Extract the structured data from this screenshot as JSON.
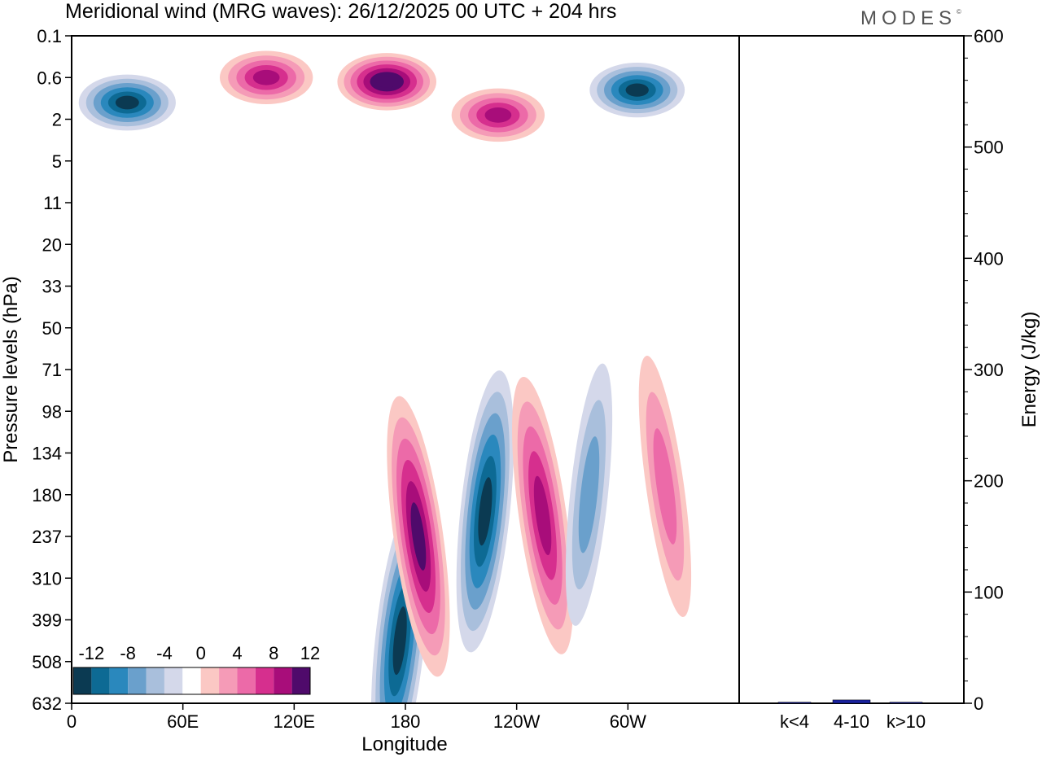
{
  "title": "Meridional wind (MRG waves):  26/12/2025  00 UTC  + 204 hrs",
  "brand": "MODES",
  "brand_mark": "©",
  "chart_data": [
    {
      "type": "heatmap",
      "variable": "Meridional wind (MRG waves)",
      "xlabel": "Longitude",
      "ylabel": "Pressure levels (hPa)",
      "x_ticks": [
        "0",
        "60E",
        "120E",
        "180",
        "120W",
        "60W"
      ],
      "x_tick_degrees": [
        0,
        60,
        120,
        180,
        240,
        300
      ],
      "xlim_degrees": [
        0,
        360
      ],
      "y_ticks": [
        "0.1",
        "0.6",
        "2",
        "5",
        "11",
        "20",
        "33",
        "50",
        "71",
        "98",
        "134",
        "180",
        "237",
        "310",
        "399",
        "508",
        "632"
      ],
      "colorbar": {
        "levels_labeled": [
          "-12",
          "-8",
          "-4",
          "0",
          "4",
          "8",
          "12"
        ],
        "bins": [
          -14,
          -12,
          -10,
          -8,
          -6,
          -4,
          -2,
          2,
          4,
          6,
          8,
          10,
          12,
          14
        ],
        "colors": [
          "#0b3a52",
          "#0d6a94",
          "#2a88bd",
          "#6aa0cc",
          "#a9bfdc",
          "#d4d8ea",
          "#ffffff",
          "#fbc8c4",
          "#f59bb7",
          "#ec6aa8",
          "#d62f8e",
          "#a80d7a",
          "#4f0a6b"
        ]
      },
      "features": [
        {
          "lon": 30,
          "level_index": 1.6,
          "value": -13,
          "description": "negative anomaly upper"
        },
        {
          "lon": 105,
          "level_index": 1.0,
          "value": 11,
          "description": "positive anomaly upper"
        },
        {
          "lon": 170,
          "level_index": 1.1,
          "value": 14,
          "description": "positive anomaly upper"
        },
        {
          "lon": 230,
          "level_index": 1.9,
          "value": 11,
          "description": "positive anomaly upper"
        },
        {
          "lon": 305,
          "level_index": 1.3,
          "value": -12,
          "description": "negative anomaly upper"
        },
        {
          "lon": 177,
          "level_index": 14.5,
          "value": -12,
          "description": "negative tongue lower"
        },
        {
          "lon": 187,
          "level_index": 12.0,
          "value": 12,
          "description": "positive band lower"
        },
        {
          "lon": 223,
          "level_index": 11.4,
          "value": -12,
          "description": "negative band lower"
        },
        {
          "lon": 254,
          "level_index": 11.5,
          "value": 11,
          "description": "positive band lower"
        },
        {
          "lon": 279,
          "level_index": 11.0,
          "value": -6,
          "description": "negative band lower"
        },
        {
          "lon": 320,
          "level_index": 10.8,
          "value": 6,
          "description": "positive anomaly lower"
        }
      ]
    },
    {
      "type": "bar",
      "categories": [
        "k<4",
        "4-10",
        "k>10"
      ],
      "values": [
        1,
        3,
        1
      ],
      "ylabel": "Energy (J/kg)",
      "ylim": [
        0,
        600
      ],
      "y_ticks": [
        "0",
        "100",
        "200",
        "300",
        "400",
        "500",
        "600"
      ]
    }
  ]
}
